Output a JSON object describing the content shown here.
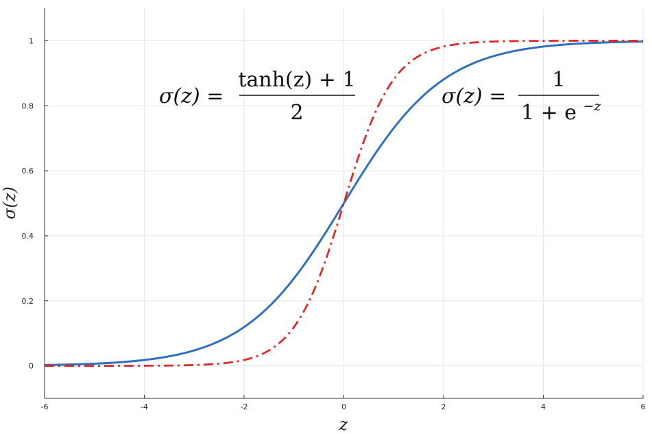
{
  "chart_data": {
    "type": "line",
    "title": "",
    "xlabel": "z",
    "ylabel": "σ(z)",
    "xlim": [
      -6,
      6
    ],
    "ylim": [
      -0.1,
      1.1
    ],
    "xticks": [
      "-6",
      "-4",
      "-2",
      "0",
      "2",
      "4",
      "6"
    ],
    "yticks": [
      "0",
      "0.2",
      "0.4",
      "0.6",
      "0.8",
      "1"
    ],
    "grid": true,
    "series": [
      {
        "function": "logistic",
        "color": "#2f6fbd",
        "style": "solid",
        "x": [
          -6,
          -5,
          -4,
          -3,
          -2,
          -1,
          0,
          1,
          2,
          3,
          4,
          5,
          6
        ],
        "y": [
          0.0025,
          0.0067,
          0.018,
          0.047,
          0.119,
          0.269,
          0.5,
          0.731,
          0.881,
          0.953,
          0.982,
          0.993,
          0.9975
        ]
      },
      {
        "function": "tanh",
        "color": "#e02828",
        "style": "dash-dot",
        "x": [
          -6,
          -5,
          -4,
          -3,
          -2,
          -1,
          0,
          1,
          2,
          3,
          4,
          5,
          6
        ],
        "y": [
          0.0,
          0.0,
          0.0003,
          0.0025,
          0.018,
          0.119,
          0.5,
          0.881,
          0.982,
          0.9975,
          0.9997,
          1.0,
          1.0
        ]
      }
    ],
    "annotations": {
      "tanh_formula": {
        "lhs": "σ(z) =",
        "numerator": "tanh(z) + 1",
        "denominator": "2"
      },
      "logistic_formula": {
        "lhs": "σ(z) =",
        "numerator": "1",
        "denominator_base": "1 + e",
        "denominator_exp": "−z"
      }
    }
  }
}
